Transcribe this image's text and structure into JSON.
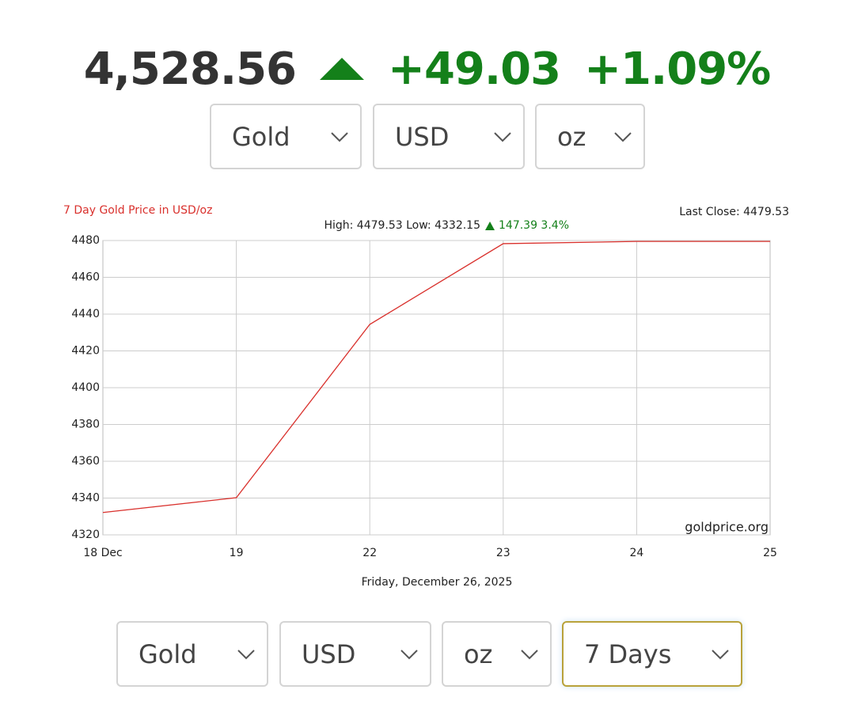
{
  "header": {
    "price": "4,528.56",
    "change": "+49.03",
    "change_percent": "+1.09%"
  },
  "selectors_top": [
    "Gold",
    "USD",
    "oz"
  ],
  "selectors_bottom": [
    "Gold",
    "USD",
    "oz",
    "7 Days"
  ],
  "chart_data": {
    "type": "line",
    "title": "7 Day Gold Price in USD/oz",
    "subtitle": "High: 4479.53 Low: 4332.15",
    "change_label": "147.39 3.4%",
    "last_close": "Last Close: 4479.53",
    "watermark": "goldprice.org",
    "xlabel": "Friday, December 26, 2025",
    "categories": [
      "18 Dec",
      "19",
      "22",
      "23",
      "24",
      "25"
    ],
    "values": [
      4332.15,
      4340.2,
      4434.4,
      4478.3,
      4479.5,
      4479.53
    ],
    "color": "#d9302c",
    "ylim": [
      4320,
      4480
    ],
    "yticks": [
      4320,
      4340,
      4360,
      4380,
      4400,
      4420,
      4440,
      4460,
      4480
    ],
    "grid": true
  }
}
